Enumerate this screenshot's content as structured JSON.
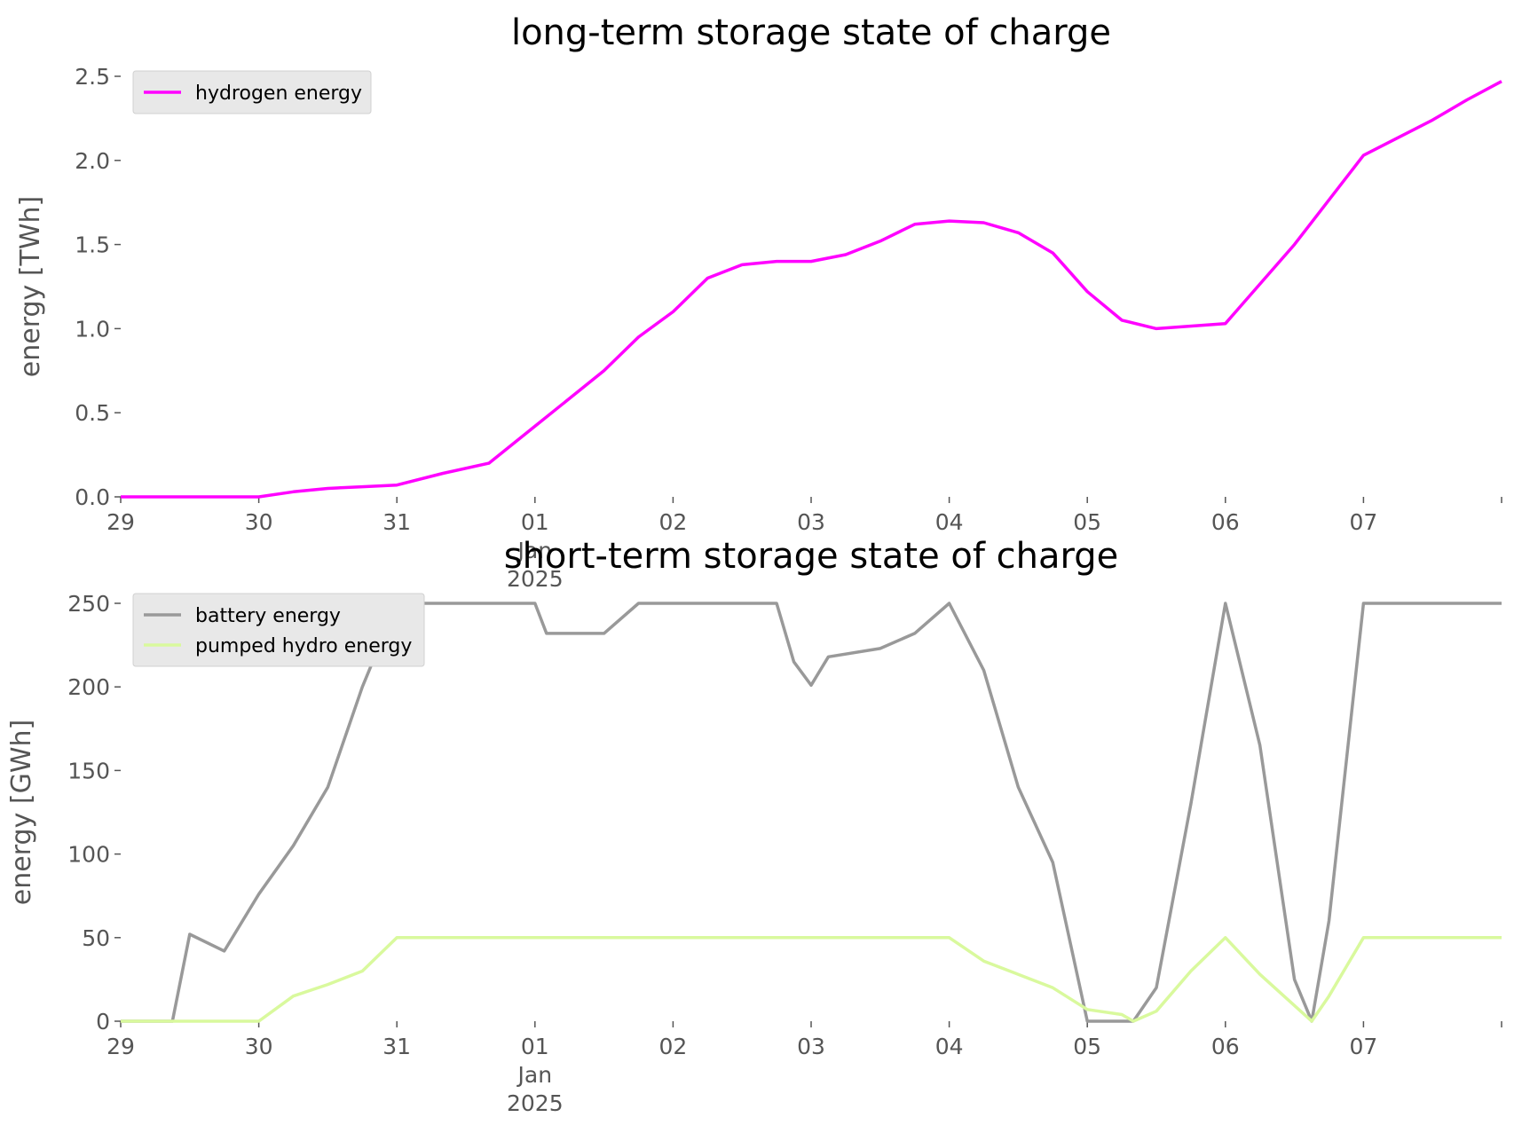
{
  "chart_data": [
    {
      "type": "line",
      "title": "long-term storage state of charge",
      "xlabel": "",
      "ylabel": "energy [TWh]",
      "ylim": [
        0,
        2.5
      ],
      "xlim": [
        "2024-12-29",
        "2025-01-08"
      ],
      "yticks": [
        "0.0",
        "0.5",
        "1.0",
        "1.5",
        "2.0",
        "2.5"
      ],
      "xticks": [
        {
          "lines": [
            "29"
          ]
        },
        {
          "lines": [
            "30"
          ]
        },
        {
          "lines": [
            "31"
          ]
        },
        {
          "lines": [
            "01",
            "Jan",
            "2025"
          ]
        },
        {
          "lines": [
            "02"
          ]
        },
        {
          "lines": [
            "03"
          ]
        },
        {
          "lines": [
            "04"
          ]
        },
        {
          "lines": [
            "05"
          ]
        },
        {
          "lines": [
            "06"
          ]
        },
        {
          "lines": [
            "07"
          ]
        },
        {
          "lines": [
            ""
          ]
        }
      ],
      "grid": false,
      "legend_position": "top-left",
      "series": [
        {
          "name": "hydrogen energy",
          "color": "#ff00ff",
          "points": [
            [
              "2024-12-29T00:00",
              0.0
            ],
            [
              "2024-12-30T00:00",
              0.0
            ],
            [
              "2024-12-30T06:00",
              0.03
            ],
            [
              "2024-12-30T12:00",
              0.05
            ],
            [
              "2024-12-30T18:00",
              0.06
            ],
            [
              "2024-12-31T00:00",
              0.07
            ],
            [
              "2024-12-31T08:00",
              0.14
            ],
            [
              "2024-12-31T16:00",
              0.2
            ],
            [
              "2025-01-01T00:00",
              0.42
            ],
            [
              "2025-01-01T12:00",
              0.75
            ],
            [
              "2025-01-01T18:00",
              0.95
            ],
            [
              "2025-01-02T00:00",
              1.1
            ],
            [
              "2025-01-02T06:00",
              1.3
            ],
            [
              "2025-01-02T12:00",
              1.38
            ],
            [
              "2025-01-02T18:00",
              1.4
            ],
            [
              "2025-01-03T00:00",
              1.4
            ],
            [
              "2025-01-03T06:00",
              1.44
            ],
            [
              "2025-01-03T12:00",
              1.52
            ],
            [
              "2025-01-03T18:00",
              1.62
            ],
            [
              "2025-01-04T00:00",
              1.64
            ],
            [
              "2025-01-04T06:00",
              1.63
            ],
            [
              "2025-01-04T12:00",
              1.57
            ],
            [
              "2025-01-04T18:00",
              1.45
            ],
            [
              "2025-01-05T00:00",
              1.22
            ],
            [
              "2025-01-05T06:00",
              1.05
            ],
            [
              "2025-01-05T12:00",
              1.0
            ],
            [
              "2025-01-06T00:00",
              1.03
            ],
            [
              "2025-01-06T12:00",
              1.5
            ],
            [
              "2025-01-07T00:00",
              2.03
            ],
            [
              "2025-01-07T12:00",
              2.24
            ],
            [
              "2025-01-07T18:00",
              2.36
            ],
            [
              "2025-01-08T00:00",
              2.47
            ]
          ]
        }
      ]
    },
    {
      "type": "line",
      "title": "short-term storage state of charge",
      "xlabel": "",
      "ylabel": "energy [GWh]",
      "ylim": [
        0,
        250
      ],
      "xlim": [
        "2024-12-29",
        "2025-01-08"
      ],
      "yticks": [
        "0",
        "50",
        "100",
        "150",
        "200",
        "250"
      ],
      "xticks": [
        {
          "lines": [
            "29"
          ]
        },
        {
          "lines": [
            "30"
          ]
        },
        {
          "lines": [
            "31"
          ]
        },
        {
          "lines": [
            "01",
            "Jan",
            "2025"
          ]
        },
        {
          "lines": [
            "02"
          ]
        },
        {
          "lines": [
            "03"
          ]
        },
        {
          "lines": [
            "04"
          ]
        },
        {
          "lines": [
            "05"
          ]
        },
        {
          "lines": [
            "06"
          ]
        },
        {
          "lines": [
            "07"
          ]
        },
        {
          "lines": [
            ""
          ]
        }
      ],
      "grid": false,
      "legend_position": "top-left",
      "series": [
        {
          "name": "battery energy",
          "color": "#999999",
          "points": [
            [
              "2024-12-29T00:00",
              0
            ],
            [
              "2024-12-29T09:00",
              0
            ],
            [
              "2024-12-29T12:00",
              52
            ],
            [
              "2024-12-29T18:00",
              42
            ],
            [
              "2024-12-30T00:00",
              76
            ],
            [
              "2024-12-30T06:00",
              105
            ],
            [
              "2024-12-30T12:00",
              140
            ],
            [
              "2024-12-30T18:00",
              200
            ],
            [
              "2024-12-31T00:00",
              250
            ],
            [
              "2025-01-01T00:00",
              250
            ],
            [
              "2025-01-01T02:00",
              232
            ],
            [
              "2025-01-01T12:00",
              232
            ],
            [
              "2025-01-01T18:00",
              250
            ],
            [
              "2025-01-02T18:00",
              250
            ],
            [
              "2025-01-02T21:00",
              215
            ],
            [
              "2025-01-03T00:00",
              201
            ],
            [
              "2025-01-03T03:00",
              218
            ],
            [
              "2025-01-03T12:00",
              223
            ],
            [
              "2025-01-03T18:00",
              232
            ],
            [
              "2025-01-04T00:00",
              250
            ],
            [
              "2025-01-04T06:00",
              210
            ],
            [
              "2025-01-04T12:00",
              140
            ],
            [
              "2025-01-04T18:00",
              95
            ],
            [
              "2025-01-05T00:00",
              0
            ],
            [
              "2025-01-05T08:00",
              0
            ],
            [
              "2025-01-05T12:00",
              20
            ],
            [
              "2025-01-05T18:00",
              130
            ],
            [
              "2025-01-06T00:00",
              250
            ],
            [
              "2025-01-06T06:00",
              165
            ],
            [
              "2025-01-06T12:00",
              25
            ],
            [
              "2025-01-06T15:00",
              0
            ],
            [
              "2025-01-06T18:00",
              60
            ],
            [
              "2025-01-07T00:00",
              250
            ],
            [
              "2025-01-08T00:00",
              250
            ]
          ]
        },
        {
          "name": "pumped hydro energy",
          "color": "#d9f99d",
          "points": [
            [
              "2024-12-29T00:00",
              0
            ],
            [
              "2024-12-30T00:00",
              0
            ],
            [
              "2024-12-30T06:00",
              15
            ],
            [
              "2024-12-30T12:00",
              22
            ],
            [
              "2024-12-30T18:00",
              30
            ],
            [
              "2024-12-31T00:00",
              50
            ],
            [
              "2025-01-04T00:00",
              50
            ],
            [
              "2025-01-04T06:00",
              36
            ],
            [
              "2025-01-04T12:00",
              28
            ],
            [
              "2025-01-04T18:00",
              20
            ],
            [
              "2025-01-05T00:00",
              7
            ],
            [
              "2025-01-05T06:00",
              4
            ],
            [
              "2025-01-05T08:00",
              0
            ],
            [
              "2025-01-05T12:00",
              6
            ],
            [
              "2025-01-05T18:00",
              30
            ],
            [
              "2025-01-06T00:00",
              50
            ],
            [
              "2025-01-06T06:00",
              28
            ],
            [
              "2025-01-06T15:00",
              0
            ],
            [
              "2025-01-06T18:00",
              15
            ],
            [
              "2025-01-07T00:00",
              50
            ],
            [
              "2025-01-08T00:00",
              50
            ]
          ]
        }
      ]
    }
  ]
}
